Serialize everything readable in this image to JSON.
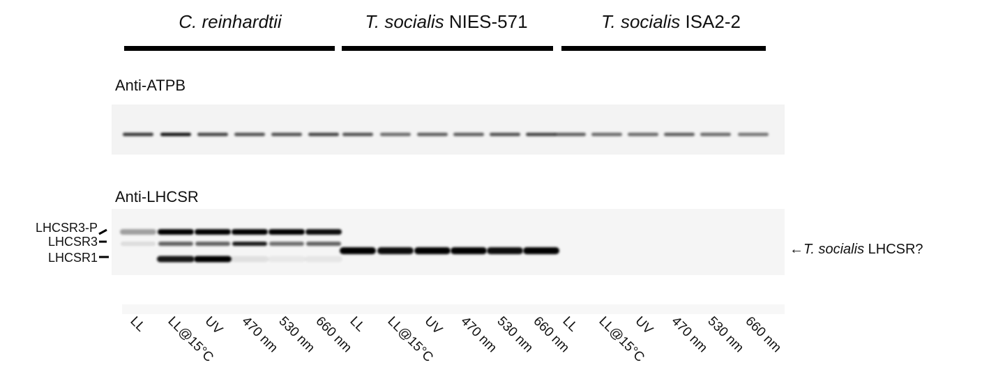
{
  "groups": [
    {
      "species": "C. reinhardtii",
      "lanes": [
        "LL",
        "LL@15°C",
        "UV",
        "470 nm",
        "530 nm",
        "660 nm"
      ]
    },
    {
      "species": "T. socialis",
      "strain": "NIES-571",
      "lanes": [
        "LL",
        "LL@15°C",
        "UV",
        "470 nm",
        "530 nm",
        "660 nm"
      ]
    },
    {
      "species": "T. socialis",
      "strain": "ISA2-2",
      "lanes": [
        "LL",
        "LL@15°C",
        "UV",
        "470 nm",
        "530 nm",
        "660 nm"
      ]
    }
  ],
  "panels": [
    "Anti-ATPB",
    "Anti-LHCSR"
  ],
  "band_labels": [
    "LHCSR3-P",
    "LHCSR3",
    "LHCSR1"
  ],
  "annotation": {
    "arrow": "←",
    "species": "T. socialis",
    "text": "LHCSR?"
  }
}
